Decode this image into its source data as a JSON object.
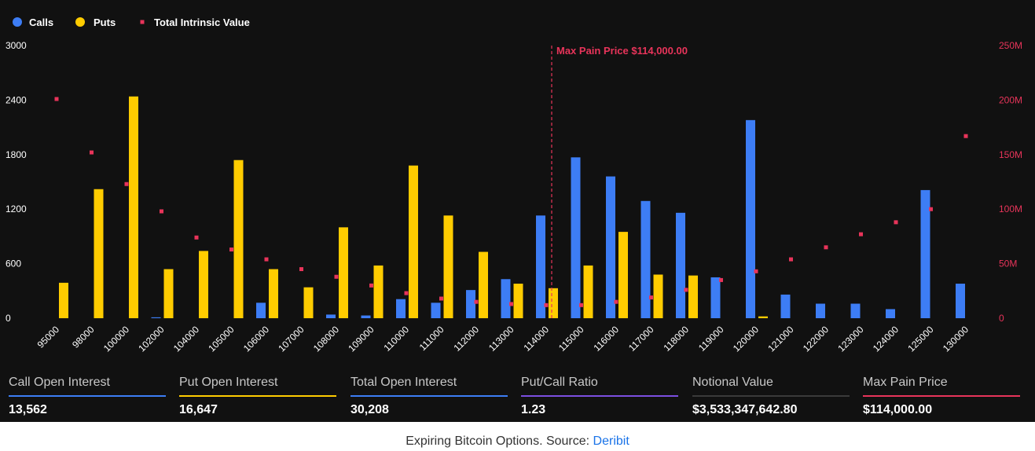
{
  "chart_data": {
    "type": "bar",
    "title": "",
    "xlabel": "",
    "ylabel": "",
    "categories": [
      "95000",
      "98000",
      "100000",
      "102000",
      "104000",
      "105000",
      "106000",
      "107000",
      "108000",
      "109000",
      "110000",
      "111000",
      "112000",
      "113000",
      "114000",
      "115000",
      "116000",
      "117000",
      "118000",
      "119000",
      "120000",
      "121000",
      "122000",
      "123000",
      "124000",
      "125000",
      "130000"
    ],
    "series": [
      {
        "name": "Calls",
        "kind": "bar",
        "axis": "left",
        "color": "#3d7df5",
        "values": [
          0,
          0,
          0,
          10,
          0,
          0,
          170,
          0,
          40,
          30,
          210,
          170,
          310,
          430,
          1130,
          1770,
          1560,
          1290,
          1160,
          450,
          2180,
          260,
          160,
          160,
          100,
          1410,
          380
        ]
      },
      {
        "name": "Puts",
        "kind": "bar",
        "axis": "left",
        "color": "#ffcc00",
        "values": [
          390,
          1420,
          2440,
          540,
          740,
          1740,
          540,
          340,
          1000,
          580,
          1680,
          1130,
          730,
          380,
          330,
          580,
          950,
          480,
          470,
          0,
          20,
          0,
          0,
          0,
          0,
          0,
          0
        ]
      },
      {
        "name": "Total Intrinsic Value",
        "kind": "scatter",
        "axis": "right",
        "color": "#e8345a",
        "values": [
          201000000,
          152000000,
          123000000,
          98000000,
          74000000,
          63000000,
          54000000,
          45000000,
          38000000,
          30000000,
          23000000,
          18000000,
          15000000,
          13000000,
          12000000,
          12000000,
          15000000,
          19000000,
          26000000,
          35000000,
          43000000,
          54000000,
          65000000,
          77000000,
          88000000,
          100000000,
          167000000
        ]
      }
    ],
    "y_left": {
      "min": 0,
      "max": 3000,
      "ticks": [
        0,
        600,
        1200,
        1800,
        2400,
        3000
      ],
      "tick_labels": [
        "0",
        "600",
        "1200",
        "1800",
        "2400",
        "3000"
      ]
    },
    "y_right": {
      "min": 0,
      "max": 250000000,
      "ticks": [
        0,
        50000000,
        100000000,
        150000000,
        200000000,
        250000000
      ],
      "tick_labels": [
        "0",
        "50M",
        "100M",
        "150M",
        "200M",
        "250M"
      ]
    },
    "legend": {
      "position": "top-left",
      "items": [
        "Calls",
        "Puts",
        "Total Intrinsic Value"
      ]
    },
    "max_pain": {
      "category": "114000",
      "label": "Max Pain Price $114,000.00",
      "color": "#e8345a"
    },
    "grid": false,
    "background": "#111111"
  },
  "stats": [
    {
      "label": "Call Open Interest",
      "value": "13,562",
      "color": "#3d7df5"
    },
    {
      "label": "Put Open Interest",
      "value": "16,647",
      "color": "#ffcc00"
    },
    {
      "label": "Total Open Interest",
      "value": "30,208",
      "color": "#3d7df5"
    },
    {
      "label": "Put/Call Ratio",
      "value": "1.23",
      "color": "#7b4fe0"
    },
    {
      "label": "Notional Value",
      "value": "$3,533,347,642.80",
      "color": "#3a3a3a"
    },
    {
      "label": "Max Pain Price",
      "value": "$114,000.00",
      "color": "#e8345a"
    }
  ],
  "caption": {
    "text": "Expiring Bitcoin Options. Source: ",
    "source": "Deribit"
  }
}
